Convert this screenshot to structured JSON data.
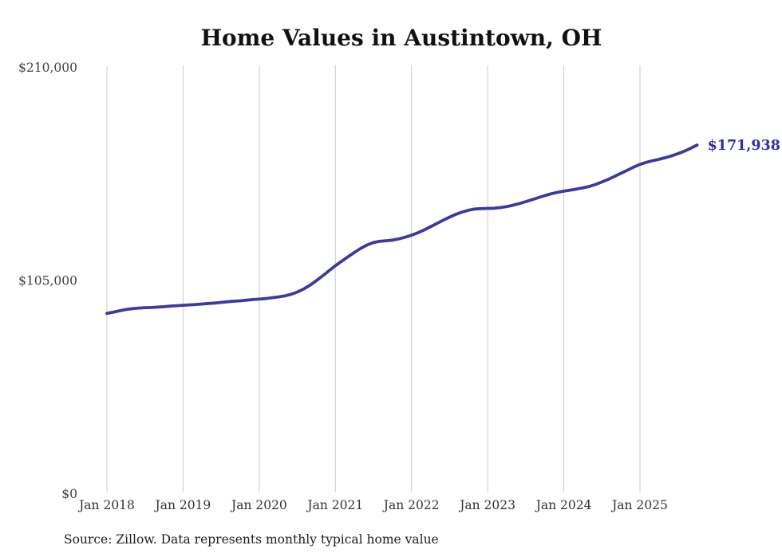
{
  "page": {
    "title": "Home Values in Austintown, OH",
    "source_note": "Source: Zillow. Data represents monthly typical home value"
  },
  "chart_data": {
    "type": "line",
    "title": "Home Values in Austintown, OH",
    "source": "Source: Zillow. Data represents monthly typical home value",
    "unit": "USD",
    "frequency": "monthly",
    "start_month": "Jan 2018",
    "end_month": "Oct 2025",
    "latest_value": 171938,
    "end_label": "$171,938",
    "xlabel": "",
    "ylabel": "",
    "ylim": [
      0,
      210000
    ],
    "grid": "vertical-only",
    "legend": "none",
    "line_color": "#3b3b9e",
    "end_label_color": "#2f2fa3",
    "gridline_color": "#cccccc",
    "x_ticks": [
      "Jan 2018",
      "Jan 2019",
      "Jan 2020",
      "Jan 2021",
      "Jan 2022",
      "Jan 2023",
      "Jan 2024",
      "Jan 2025"
    ],
    "x_tick_month_indexes": [
      0,
      12,
      24,
      36,
      48,
      60,
      72,
      84
    ],
    "y_ticks": [
      {
        "label": "$0",
        "value": 0
      },
      {
        "label": "$105,000",
        "value": 105000
      },
      {
        "label": "$210,000",
        "value": 210000
      }
    ],
    "series": [
      {
        "name": "Typical home value",
        "values": [
          89000,
          89600,
          90300,
          90900,
          91300,
          91600,
          91800,
          91900,
          92100,
          92300,
          92600,
          92800,
          93000,
          93200,
          93400,
          93600,
          93900,
          94100,
          94400,
          94700,
          95000,
          95200,
          95500,
          95800,
          96000,
          96300,
          96700,
          97100,
          97600,
          98400,
          99500,
          101000,
          102900,
          105100,
          107500,
          110000,
          112500,
          114700,
          116900,
          119000,
          121000,
          122700,
          123900,
          124500,
          124800,
          125100,
          125700,
          126500,
          127500,
          128700,
          130100,
          131700,
          133300,
          134900,
          136400,
          137800,
          138900,
          139800,
          140400,
          140600,
          140700,
          140800,
          141100,
          141600,
          142300,
          143100,
          144000,
          145000,
          146000,
          147000,
          147900,
          148600,
          149200,
          149700,
          150200,
          150800,
          151500,
          152500,
          153700,
          155000,
          156500,
          158000,
          159500,
          161000,
          162400,
          163400,
          164200,
          164900,
          165700,
          166600,
          167700,
          168900,
          170300,
          171938
        ]
      }
    ]
  }
}
